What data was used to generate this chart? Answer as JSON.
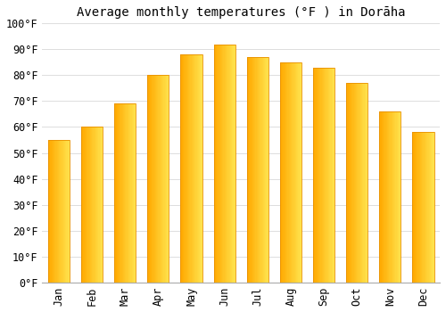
{
  "title": "Average monthly temperatures (°F ) in Dorāha",
  "months": [
    "Jan",
    "Feb",
    "Mar",
    "Apr",
    "May",
    "Jun",
    "Jul",
    "Aug",
    "Sep",
    "Oct",
    "Nov",
    "Dec"
  ],
  "values": [
    55,
    60,
    69,
    80,
    88,
    92,
    87,
    85,
    83,
    77,
    66,
    58
  ],
  "bar_color_left": "#FFAA00",
  "bar_color_right": "#FFD060",
  "bar_edge_color": "#E89000",
  "background_color": "#ffffff",
  "grid_color": "#dddddd",
  "ylim": [
    0,
    100
  ],
  "yticks": [
    0,
    10,
    20,
    30,
    40,
    50,
    60,
    70,
    80,
    90,
    100
  ],
  "title_fontsize": 10,
  "tick_fontsize": 8.5,
  "bar_width": 0.65
}
